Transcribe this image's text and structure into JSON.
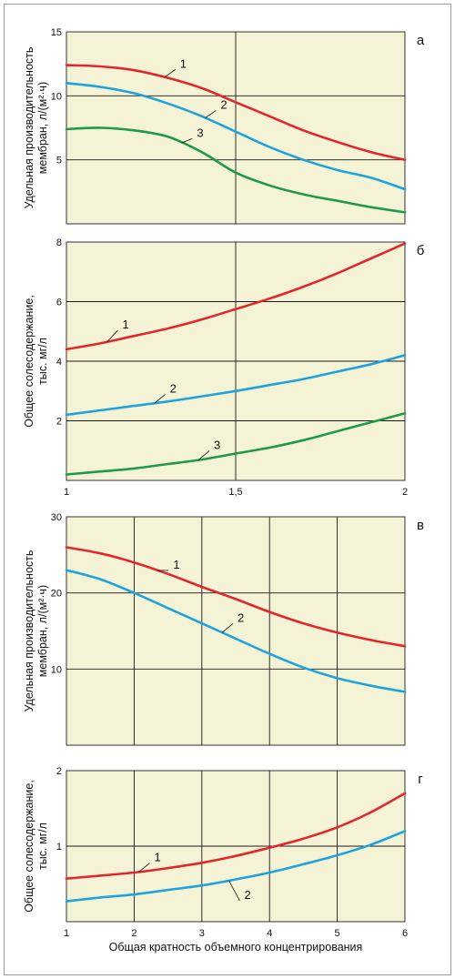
{
  "chart_data": [
    {
      "type": "line",
      "panel_letter": "а",
      "ylabel_lines": [
        "Удельная производительность",
        "мембран, л/(м²·ч)"
      ],
      "xlim": [
        1,
        2
      ],
      "ylim": [
        0,
        15
      ],
      "y_ticks": [
        5,
        10,
        15
      ],
      "y_tick_labels": [
        "5",
        "10",
        "15"
      ],
      "x_ticks": [],
      "x_tick_labels": [],
      "x_grid": [
        1.5
      ],
      "y_grid": [
        5,
        10
      ],
      "series": [
        {
          "name": "1",
          "color": "#e3262e",
          "label_at": [
            1.33,
            12.2
          ],
          "x": [
            1,
            1.1,
            1.2,
            1.3,
            1.4,
            1.5,
            1.6,
            1.7,
            1.8,
            1.9,
            2
          ],
          "y": [
            12.4,
            12.3,
            12.0,
            11.4,
            10.6,
            9.5,
            8.4,
            7.3,
            6.4,
            5.6,
            5.0
          ]
        },
        {
          "name": "2",
          "color": "#1ea3dd",
          "label_at": [
            1.45,
            9.0
          ],
          "x": [
            1,
            1.1,
            1.2,
            1.3,
            1.4,
            1.5,
            1.6,
            1.7,
            1.8,
            1.9,
            2
          ],
          "y": [
            11.0,
            10.7,
            10.2,
            9.4,
            8.4,
            7.2,
            6.0,
            5.0,
            4.2,
            3.6,
            2.7
          ]
        },
        {
          "name": "3",
          "color": "#1f9a4a",
          "label_at": [
            1.38,
            6.8
          ],
          "x": [
            1,
            1.1,
            1.2,
            1.3,
            1.4,
            1.5,
            1.6,
            1.7,
            1.8,
            1.9,
            2
          ],
          "y": [
            7.4,
            7.5,
            7.3,
            6.8,
            5.6,
            4.0,
            3.0,
            2.3,
            1.8,
            1.3,
            0.9
          ]
        }
      ]
    },
    {
      "type": "line",
      "panel_letter": "б",
      "ylabel_lines": [
        "Общее солесодержание,",
        "тыс. мг/л"
      ],
      "xlim": [
        1,
        2
      ],
      "ylim": [
        0,
        8
      ],
      "y_ticks": [
        2,
        4,
        6,
        8
      ],
      "y_tick_labels": [
        "2",
        "4",
        "6",
        "8"
      ],
      "x_ticks": [
        1,
        1.5,
        2
      ],
      "x_tick_labels": [
        "1",
        "1,5",
        "2"
      ],
      "x_grid": [
        1.5
      ],
      "y_grid": [
        2,
        4,
        6
      ],
      "series": [
        {
          "name": "1",
          "color": "#e3262e",
          "label_at": [
            1.16,
            5.1
          ],
          "x": [
            1,
            1.1,
            1.2,
            1.3,
            1.4,
            1.5,
            1.6,
            1.7,
            1.8,
            1.9,
            2
          ],
          "y": [
            4.4,
            4.6,
            4.85,
            5.1,
            5.4,
            5.75,
            6.1,
            6.5,
            6.95,
            7.45,
            7.95
          ]
        },
        {
          "name": "2",
          "color": "#1ea3dd",
          "label_at": [
            1.3,
            2.95
          ],
          "x": [
            1,
            1.1,
            1.2,
            1.3,
            1.4,
            1.5,
            1.6,
            1.7,
            1.8,
            1.9,
            2
          ],
          "y": [
            2.2,
            2.35,
            2.5,
            2.65,
            2.82,
            3.0,
            3.2,
            3.4,
            3.65,
            3.9,
            4.2
          ]
        },
        {
          "name": "3",
          "color": "#1f9a4a",
          "label_at": [
            1.43,
            1.05
          ],
          "x": [
            1,
            1.1,
            1.2,
            1.3,
            1.4,
            1.5,
            1.6,
            1.7,
            1.8,
            1.9,
            2
          ],
          "y": [
            0.2,
            0.3,
            0.4,
            0.55,
            0.7,
            0.9,
            1.1,
            1.35,
            1.65,
            1.95,
            2.25
          ]
        }
      ]
    },
    {
      "type": "line",
      "panel_letter": "в",
      "ylabel_lines": [
        "Удельная производительность",
        "мембран, л/(м²·ч)"
      ],
      "xlim": [
        1,
        6
      ],
      "ylim": [
        0,
        30
      ],
      "y_ticks": [
        10,
        20,
        30
      ],
      "y_tick_labels": [
        "10",
        "20",
        "30"
      ],
      "x_ticks": [],
      "x_tick_labels": [],
      "x_grid": [
        2,
        3,
        4,
        5
      ],
      "y_grid": [
        10,
        20
      ],
      "series": [
        {
          "name": "1",
          "color": "#e3262e",
          "label_at": [
            2.55,
            23.2
          ],
          "x": [
            1,
            1.5,
            2,
            2.5,
            3,
            3.5,
            4,
            4.5,
            5,
            5.5,
            6
          ],
          "y": [
            26.0,
            25.2,
            24.0,
            22.5,
            20.8,
            19.2,
            17.5,
            16.0,
            14.8,
            13.8,
            13.0
          ]
        },
        {
          "name": "2",
          "color": "#1ea3dd",
          "label_at": [
            3.5,
            16.2
          ],
          "x": [
            1,
            1.5,
            2,
            2.5,
            3,
            3.5,
            4,
            4.5,
            5,
            5.5,
            6
          ],
          "y": [
            23.0,
            21.8,
            20.0,
            18.0,
            16.0,
            14.0,
            12.0,
            10.2,
            8.8,
            7.8,
            7.0
          ]
        }
      ]
    },
    {
      "type": "line",
      "panel_letter": "г",
      "ylabel_lines": [
        "Общее солесодержание,",
        "тыс. мг/л"
      ],
      "xlim": [
        1,
        6
      ],
      "ylim": [
        0,
        2
      ],
      "y_ticks": [
        1,
        2
      ],
      "y_tick_labels": [
        "1",
        "2"
      ],
      "x_ticks": [
        1,
        2,
        3,
        4,
        5,
        6
      ],
      "x_tick_labels": [
        "1",
        "2",
        "3",
        "4",
        "5",
        "6"
      ],
      "x_grid": [
        2,
        3,
        4,
        5
      ],
      "y_grid": [
        1
      ],
      "xlabel": "Общая кратность объемного концентрирования",
      "series": [
        {
          "name": "1",
          "color": "#e3262e",
          "label_at": [
            2.27,
            0.8
          ],
          "x": [
            1,
            1.5,
            2,
            2.5,
            3,
            3.5,
            4,
            4.5,
            5,
            5.5,
            6
          ],
          "y": [
            0.57,
            0.61,
            0.65,
            0.71,
            0.78,
            0.87,
            0.98,
            1.1,
            1.25,
            1.45,
            1.7
          ]
        },
        {
          "name": "2",
          "color": "#1ea3dd",
          "label_at": [
            3.6,
            0.3
          ],
          "x": [
            1,
            1.5,
            2,
            2.5,
            3,
            3.5,
            4,
            4.5,
            5,
            5.5,
            6
          ],
          "y": [
            0.27,
            0.32,
            0.36,
            0.42,
            0.48,
            0.56,
            0.65,
            0.76,
            0.88,
            1.02,
            1.2
          ]
        }
      ]
    }
  ]
}
